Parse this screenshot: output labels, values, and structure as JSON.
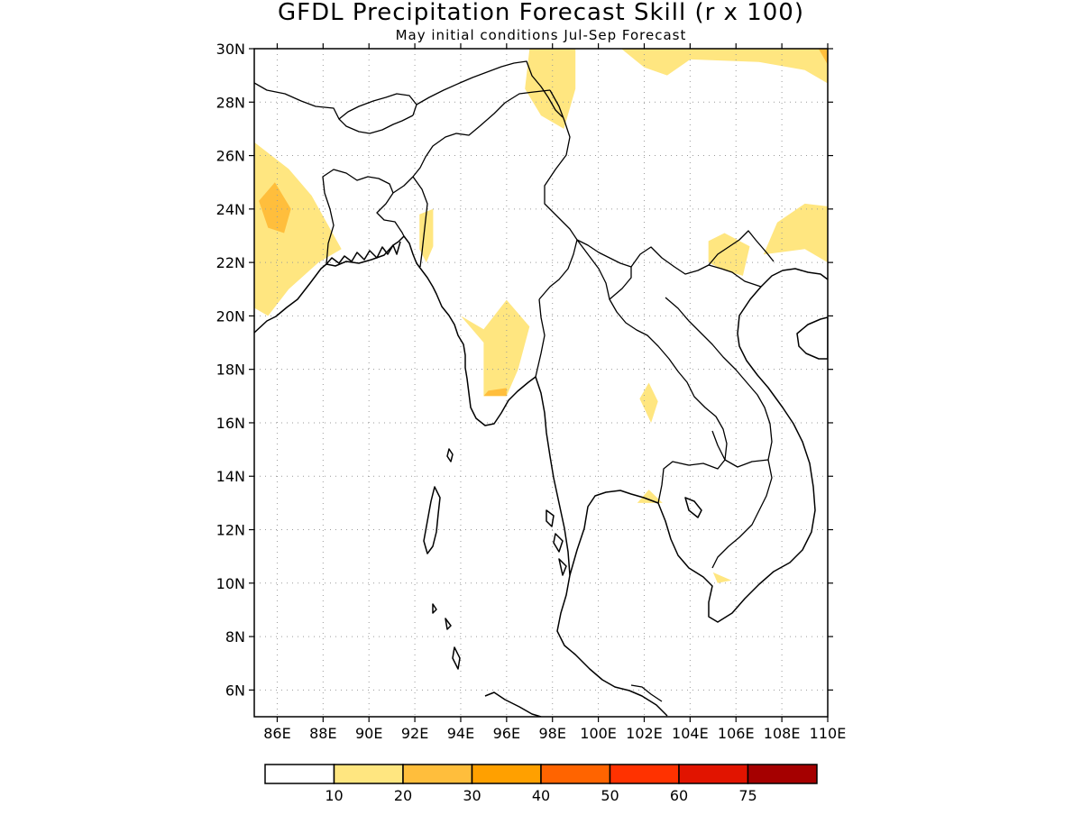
{
  "title": "GFDL Precipitation Forecast Skill (r x 100)",
  "subtitle": "May initial conditions  Jul-Sep Forecast",
  "map": {
    "lon_range": [
      85,
      110
    ],
    "lat_range": [
      5,
      30
    ],
    "lon_ticks": [
      86,
      88,
      90,
      92,
      94,
      96,
      98,
      100,
      102,
      104,
      106,
      108,
      110
    ],
    "lat_ticks": [
      6,
      8,
      10,
      12,
      14,
      16,
      18,
      20,
      22,
      24,
      26,
      28,
      30
    ],
    "lon_tick_labels": [
      "86E",
      "88E",
      "90E",
      "92E",
      "94E",
      "96E",
      "98E",
      "100E",
      "102E",
      "104E",
      "106E",
      "108E",
      "110E"
    ],
    "lat_tick_labels": [
      "6N",
      "8N",
      "10N",
      "12N",
      "14N",
      "16N",
      "18N",
      "20N",
      "22N",
      "24N",
      "26N",
      "28N",
      "30N"
    ],
    "grid": true,
    "skill_regions": [
      {
        "level": 1,
        "poly": [
          [
            85,
            26.5
          ],
          [
            86.5,
            25.5
          ],
          [
            87.5,
            24.5
          ],
          [
            88.8,
            22.5
          ],
          [
            87.8,
            22
          ],
          [
            86.5,
            21
          ],
          [
            85.6,
            20
          ],
          [
            85,
            20.3
          ]
        ]
      },
      {
        "level": 2,
        "poly": [
          [
            85.2,
            24.3
          ],
          [
            85.9,
            25
          ],
          [
            86.6,
            24
          ],
          [
            86.3,
            23.1
          ],
          [
            85.6,
            23.3
          ]
        ]
      },
      {
        "level": 1,
        "poly": [
          [
            92.2,
            23.8
          ],
          [
            92.8,
            24
          ],
          [
            92.8,
            22.6
          ],
          [
            92.5,
            22
          ],
          [
            92.2,
            22.5
          ]
        ]
      },
      {
        "level": 1,
        "poly": [
          [
            94,
            20
          ],
          [
            95,
            19.5
          ],
          [
            96,
            20.6
          ],
          [
            97,
            19.6
          ],
          [
            96.5,
            18
          ],
          [
            96,
            17
          ],
          [
            95,
            17
          ],
          [
            95,
            19
          ]
        ]
      },
      {
        "level": 2,
        "poly": [
          [
            95,
            17
          ],
          [
            96,
            17
          ],
          [
            96,
            17.3
          ],
          [
            95.2,
            17.2
          ]
        ]
      },
      {
        "level": 1,
        "poly": [
          [
            97,
            30
          ],
          [
            99,
            30
          ],
          [
            99,
            28.5
          ],
          [
            98.5,
            27
          ],
          [
            97.5,
            27.5
          ],
          [
            96.8,
            28.5
          ]
        ]
      },
      {
        "level": 1,
        "poly": [
          [
            101,
            30
          ],
          [
            110,
            30
          ],
          [
            110,
            28.7
          ],
          [
            109,
            29.2
          ],
          [
            107,
            29.5
          ],
          [
            104,
            29.6
          ],
          [
            103,
            29
          ],
          [
            102,
            29.3
          ]
        ]
      },
      {
        "level": 2,
        "poly": [
          [
            109.6,
            30
          ],
          [
            110,
            30
          ],
          [
            110,
            29.4
          ]
        ]
      },
      {
        "level": 1,
        "poly": [
          [
            107.8,
            23.5
          ],
          [
            109,
            24.2
          ],
          [
            110,
            24.1
          ],
          [
            110,
            22
          ],
          [
            109,
            22.5
          ],
          [
            107.2,
            22.3
          ]
        ]
      },
      {
        "level": 1,
        "poly": [
          [
            104.8,
            22.8
          ],
          [
            105.5,
            23.1
          ],
          [
            106.6,
            22.6
          ],
          [
            106.3,
            21.5
          ],
          [
            105.5,
            21.7
          ],
          [
            104.8,
            22
          ]
        ]
      },
      {
        "level": 1,
        "poly": [
          [
            101.8,
            16.9
          ],
          [
            102.2,
            17.5
          ],
          [
            102.6,
            16.8
          ],
          [
            102.3,
            16
          ]
        ]
      },
      {
        "level": 1,
        "poly": [
          [
            101.7,
            13
          ],
          [
            102.2,
            13.5
          ],
          [
            102.8,
            13
          ]
        ]
      },
      {
        "level": 1,
        "poly": [
          [
            105,
            10.4
          ],
          [
            105.8,
            10.1
          ],
          [
            105.2,
            10
          ]
        ]
      }
    ]
  },
  "legend": {
    "colors": [
      "#ffffff",
      "#ffe680",
      "#ffbe3c",
      "#ffa000",
      "#ff6400",
      "#ff3200",
      "#e11400",
      "#a50000"
    ],
    "labels": [
      "10",
      "20",
      "30",
      "40",
      "50",
      "60",
      "75"
    ]
  }
}
